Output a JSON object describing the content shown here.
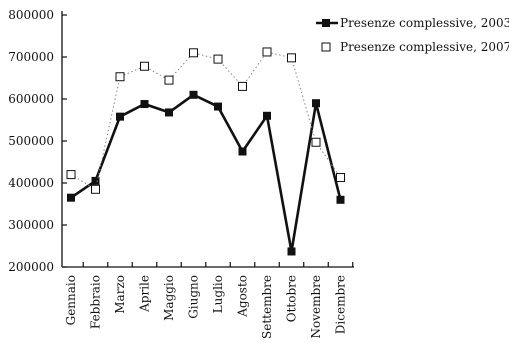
{
  "chart_data": {
    "type": "line",
    "categories": [
      "Gennaio",
      "Febbraio",
      "Marzo",
      "Aprile",
      "Maggio",
      "Giugno",
      "Luglio",
      "Agosto",
      "Settembre",
      "Ottobre",
      "Novembre",
      "Dicembre"
    ],
    "series": [
      {
        "name": "Presenze complessive, 2003",
        "values": [
          365000,
          405000,
          558000,
          588000,
          568000,
          610000,
          582000,
          475000,
          560000,
          237000,
          590000,
          360000
        ],
        "color": "#111111",
        "marker": "filled-square",
        "line": "solid"
      },
      {
        "name": "Presenze complessive, 2007",
        "values": [
          420000,
          385000,
          653000,
          678000,
          645000,
          710000,
          695000,
          630000,
          712000,
          698000,
          497000,
          413000
        ],
        "color": "#111111",
        "marker": "open-square",
        "line": "dotted"
      }
    ],
    "yticks": [
      200000,
      300000,
      400000,
      500000,
      600000,
      700000,
      800000
    ],
    "ytick_labels": [
      "200000",
      "300000",
      "400000",
      "500000",
      "600000",
      "700000",
      "800000"
    ],
    "ylim": [
      200000,
      800000
    ],
    "legend_position": "top-right",
    "grid": false
  }
}
